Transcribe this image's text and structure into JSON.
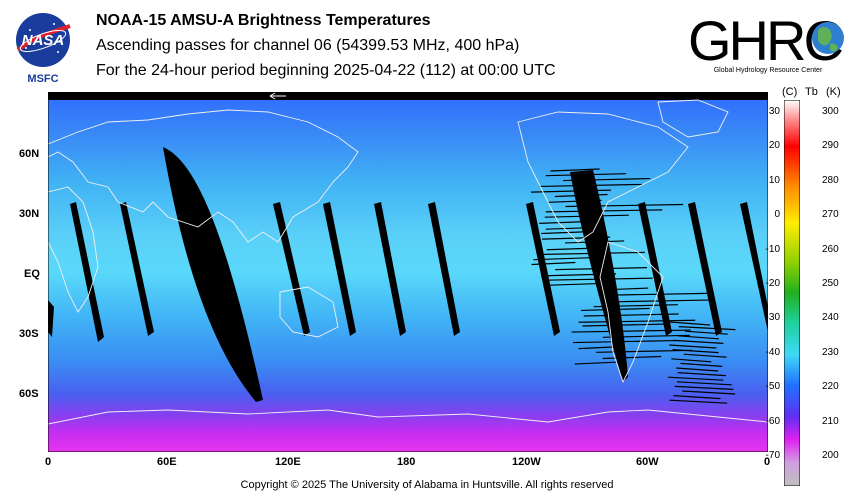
{
  "header": {
    "title": "NOAA-15 AMSU-A Brightness Temperatures",
    "subtitle": "Ascending passes for channel 06 (54399.53 MHz, 400 hPa)",
    "period": "For the 24-hour period beginning 2025-04-22 (112) at 00:00 UTC"
  },
  "logos": {
    "left_text": "NASA",
    "left_caption": "MSFC",
    "right_text": "GHRC",
    "right_caption": "Global Hydrology Resource Center"
  },
  "colorbar": {
    "unit_c": "(C)",
    "unit_tb": "Tb",
    "unit_k": "(K)",
    "c_ticks": [
      "30",
      "20",
      "10",
      "0",
      "-10",
      "-20",
      "-30",
      "-40",
      "-50",
      "-60",
      "-70"
    ],
    "k_ticks": [
      "300",
      "290",
      "280",
      "270",
      "260",
      "250",
      "240",
      "230",
      "220",
      "210",
      "200"
    ]
  },
  "footer": {
    "copyright": "Copyright © 2025 The University of Alabama in Huntsville.  All rights reserved"
  },
  "chart_data": {
    "type": "heatmap",
    "title": "NOAA-15 AMSU-A Brightness Temperatures",
    "x_ticks": [
      "0",
      "60E",
      "120E",
      "180",
      "120W",
      "60W",
      "0"
    ],
    "x_values": [
      0,
      60,
      120,
      180,
      240,
      300,
      360
    ],
    "y_ticks": [
      "60N",
      "30N",
      "EQ",
      "30S",
      "60S"
    ],
    "y_values": [
      60,
      30,
      0,
      -30,
      -60
    ],
    "xlim": [
      0,
      360
    ],
    "ylim": [
      -90,
      90
    ],
    "colorbar_range_K": [
      195,
      305
    ],
    "colorbar_range_C": [
      -78,
      32
    ],
    "colors": {
      "no_data": "#000000",
      "cold": "#e020f0",
      "mid": "#1f7dff",
      "warm": "#60e0f8"
    }
  }
}
